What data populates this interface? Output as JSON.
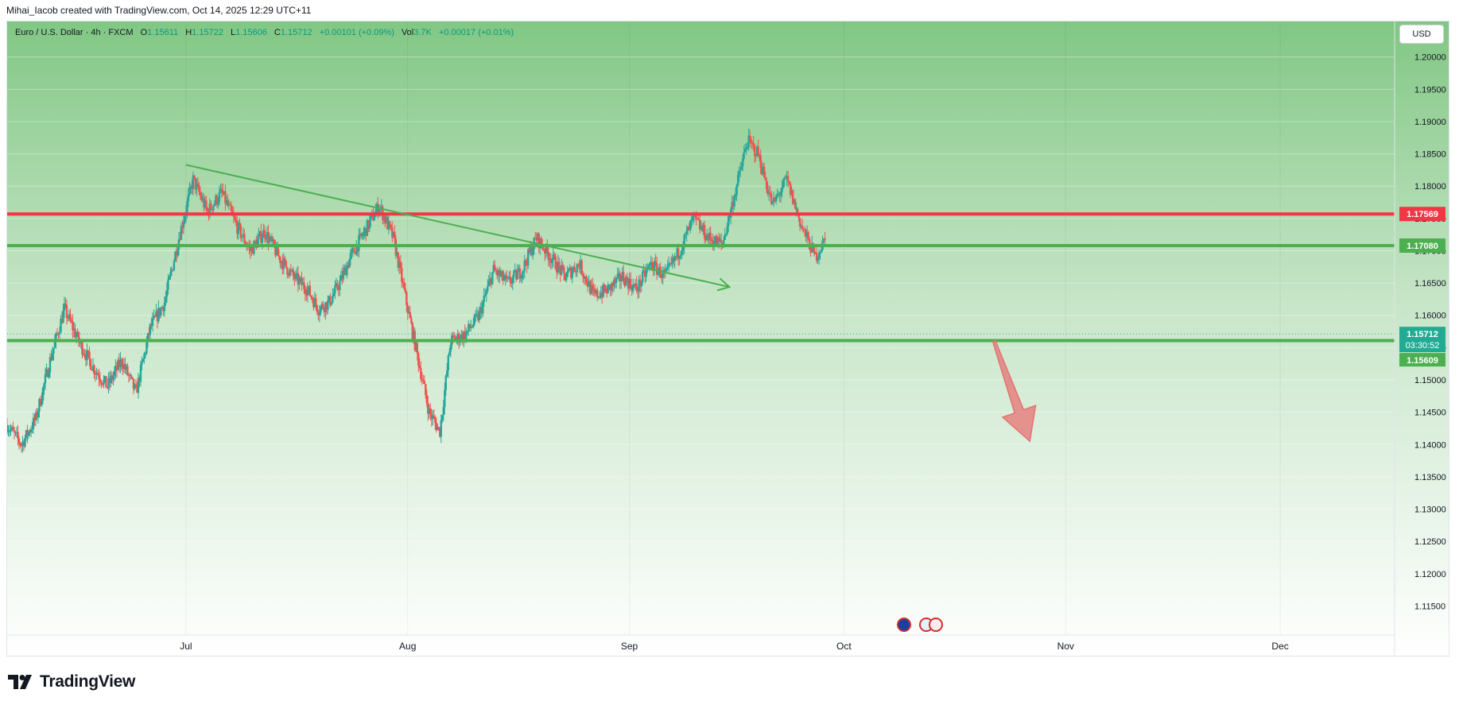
{
  "credit": "Mihai_Iacob created with TradingView.com, Oct 14, 2025 12:29 UTC+11",
  "legend": {
    "symbol": "Euro / U.S. Dollar · 4h · FXCM",
    "o_label": "O",
    "o": "1.15611",
    "h_label": "H",
    "h": "1.15722",
    "l_label": "L",
    "l": "1.15606",
    "c_label": "C",
    "c": "1.15712",
    "change": "+0.00101 (+0.09%)",
    "vol_label": "Vol",
    "vol": "3.7K",
    "vol_change": "+0.00017 (+0.01%)"
  },
  "currency": "USD",
  "logo": "TradingView",
  "chart_data": {
    "type": "candlestick",
    "y_ticks": [
      "1.11500",
      "1.12000",
      "1.12500",
      "1.13000",
      "1.13500",
      "1.14000",
      "1.14500",
      "1.15000",
      "1.15500",
      "1.16000",
      "1.16500",
      "1.17000",
      "1.17500",
      "1.18000",
      "1.18500",
      "1.19000",
      "1.19500",
      "1.20000"
    ],
    "ylim": [
      1.1105,
      1.2055
    ],
    "x_ticks": [
      {
        "label": "Jul",
        "day": 20
      },
      {
        "label": "Aug",
        "day": 51
      },
      {
        "label": "Sep",
        "day": 82
      },
      {
        "label": "Oct",
        "day": 112
      },
      {
        "label": "Nov",
        "day": 143
      },
      {
        "label": "Dec",
        "day": 173
      }
    ],
    "xlim": [
      -5,
      189
    ],
    "last_day": 109.5,
    "colors": {
      "up": "#26a69a",
      "down": "#ef5350",
      "support": "#4caf50",
      "resistance": "#f23645",
      "current": "#22ab94",
      "arrow_down": "#e57373",
      "trend": "#4caf50"
    },
    "price_path": [
      [
        -5,
        1.143
      ],
      [
        -3,
        1.14
      ],
      [
        -1,
        1.144
      ],
      [
        1,
        1.153
      ],
      [
        3,
        1.161
      ],
      [
        5,
        1.156
      ],
      [
        7,
        1.152
      ],
      [
        9,
        1.149
      ],
      [
        11,
        1.153
      ],
      [
        13,
        1.148
      ],
      [
        15,
        1.158
      ],
      [
        17,
        1.162
      ],
      [
        19,
        1.172
      ],
      [
        21,
        1.181
      ],
      [
        23,
        1.176
      ],
      [
        25,
        1.179
      ],
      [
        27,
        1.174
      ],
      [
        29,
        1.17
      ],
      [
        31,
        1.173
      ],
      [
        33,
        1.169
      ],
      [
        35,
        1.166
      ],
      [
        37,
        1.164
      ],
      [
        38.5,
        1.161
      ],
      [
        40,
        1.162
      ],
      [
        41.5,
        1.165
      ],
      [
        43,
        1.169
      ],
      [
        45,
        1.173
      ],
      [
        47,
        1.177
      ],
      [
        49,
        1.172
      ],
      [
        51,
        1.161
      ],
      [
        52.5,
        1.153
      ],
      [
        54,
        1.145
      ],
      [
        55.5,
        1.142
      ],
      [
        57,
        1.156
      ],
      [
        59,
        1.157
      ],
      [
        61,
        1.16
      ],
      [
        63,
        1.167
      ],
      [
        65,
        1.165
      ],
      [
        67,
        1.167
      ],
      [
        69,
        1.172
      ],
      [
        71,
        1.169
      ],
      [
        73,
        1.166
      ],
      [
        75,
        1.168
      ],
      [
        77,
        1.163
      ],
      [
        79,
        1.164
      ],
      [
        81,
        1.166
      ],
      [
        83,
        1.164
      ],
      [
        85,
        1.168
      ],
      [
        87,
        1.166
      ],
      [
        89,
        1.17
      ],
      [
        91,
        1.175
      ],
      [
        93,
        1.172
      ],
      [
        95,
        1.171
      ],
      [
        97,
        1.18
      ],
      [
        98.5,
        1.187
      ],
      [
        100,
        1.185
      ],
      [
        102,
        1.177
      ],
      [
        104,
        1.181
      ],
      [
        106,
        1.174
      ],
      [
        108,
        1.169
      ],
      [
        110,
        1.173
      ],
      [
        112,
        1.176
      ],
      [
        114,
        1.174
      ],
      [
        116,
        1.171
      ],
      [
        118,
        1.166
      ],
      [
        120,
        1.162
      ],
      [
        122,
        1.157
      ],
      [
        123.5,
        1.162
      ],
      [
        125,
        1.158
      ],
      [
        126,
        1.1571
      ]
    ],
    "support_levels": [
      "1.17080",
      "1.15609"
    ],
    "resistance_levels": [
      "1.17569"
    ],
    "current_price": "1.15712",
    "countdown": "03:30:52",
    "trend_line": {
      "from": [
        20,
        1.1833
      ],
      "to": [
        96,
        1.1644
      ]
    },
    "forecast_arrow": {
      "from": [
        133,
        1.156
      ],
      "to": [
        138,
        1.1405
      ]
    }
  }
}
